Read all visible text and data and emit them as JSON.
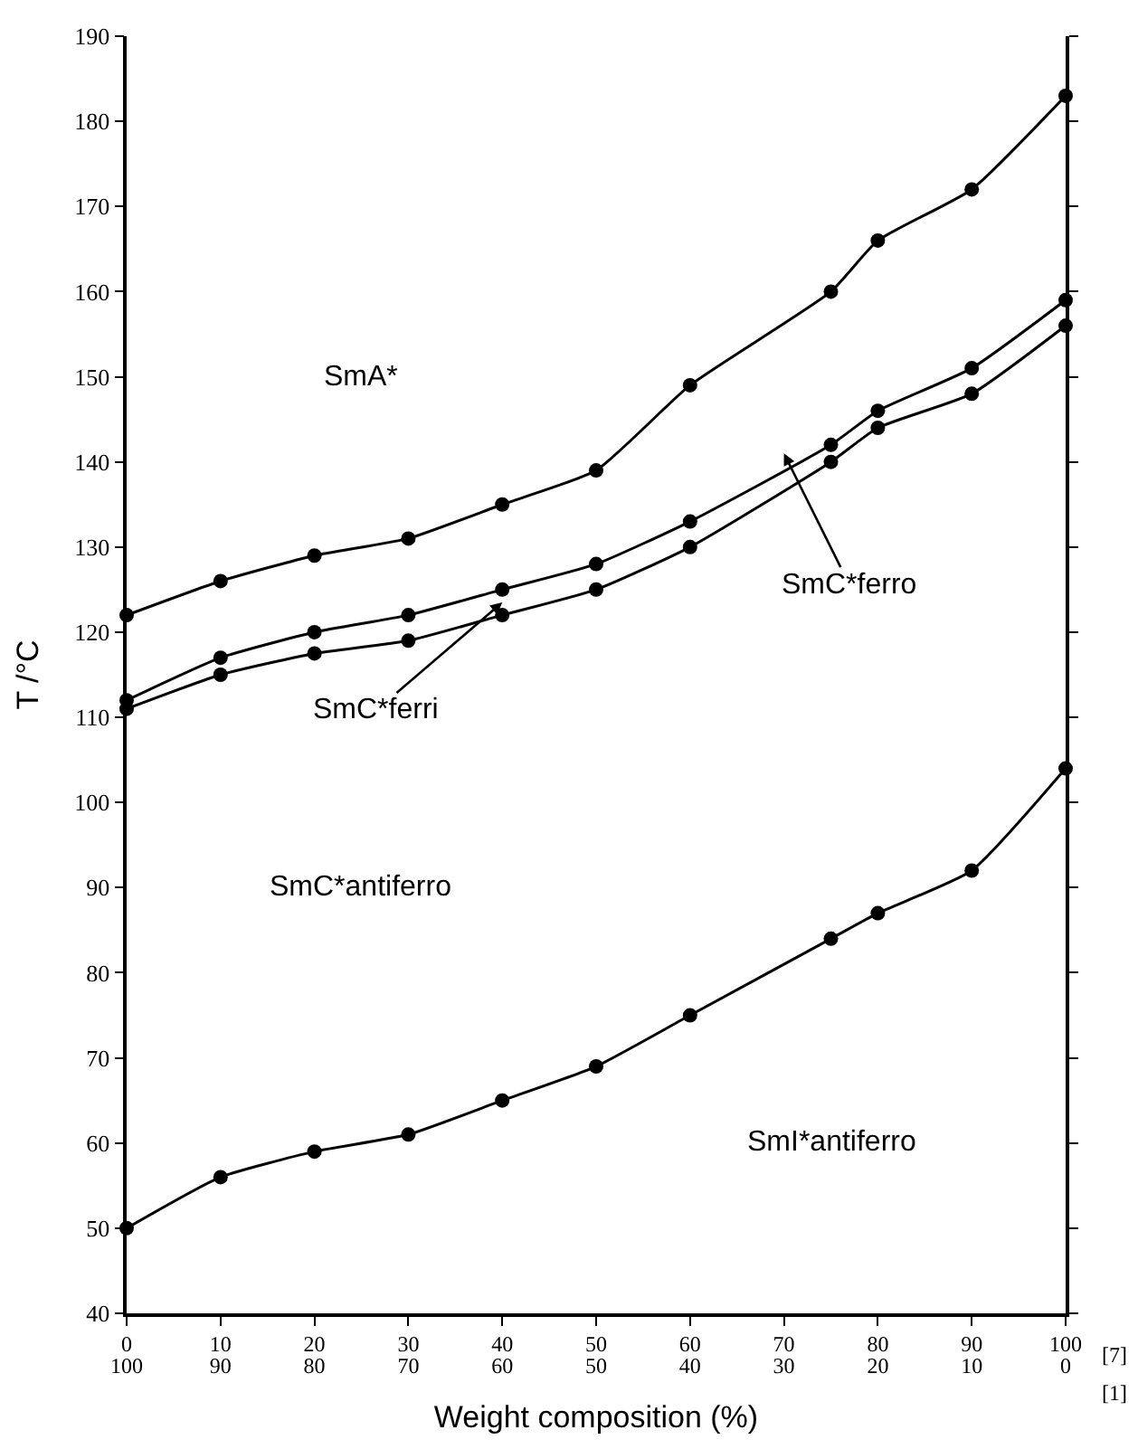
{
  "chart_data": {
    "type": "line",
    "xlabel": "Weight composition (%)",
    "ylabel": "T /°C",
    "x": [
      0,
      10,
      20,
      30,
      40,
      50,
      60,
      75,
      80,
      90,
      100
    ],
    "series": [
      {
        "color": "#000000",
        "values": [
          122,
          126,
          129,
          131,
          135,
          139,
          149,
          160,
          166,
          172,
          183
        ]
      },
      {
        "color": "#000000",
        "values": [
          112,
          117,
          120,
          122,
          125,
          128,
          133,
          142,
          146,
          151,
          159
        ]
      },
      {
        "color": "#000000",
        "values": [
          111,
          115,
          117.5,
          119,
          122,
          125,
          130,
          140,
          144,
          148,
          156
        ]
      },
      {
        "color": "#000000",
        "values": [
          50,
          56,
          59,
          61,
          65,
          69,
          75,
          84,
          87,
          92,
          104
        ]
      }
    ],
    "xlim": [
      0,
      100
    ],
    "ylim": [
      40,
      190
    ],
    "xticks": [
      0,
      10,
      20,
      30,
      40,
      50,
      60,
      70,
      80,
      90,
      100
    ],
    "x2lim": [
      100,
      0
    ],
    "x2ticks": [
      100,
      90,
      80,
      70,
      60,
      50,
      40,
      30,
      20,
      10,
      0
    ],
    "yticks": [
      40,
      50,
      60,
      70,
      80,
      90,
      100,
      110,
      120,
      130,
      140,
      150,
      160,
      170,
      180,
      190
    ],
    "annotations": [
      "SmA*",
      "SmC*ferro",
      {
        "text": "SmC*ferri",
        "x": 40,
        "y": 123.5
      },
      "SmC*antiferro",
      "SmI*antiferro",
      "[7]",
      "[1]"
    ],
    "marker": "circle",
    "line_style": "solid"
  }
}
